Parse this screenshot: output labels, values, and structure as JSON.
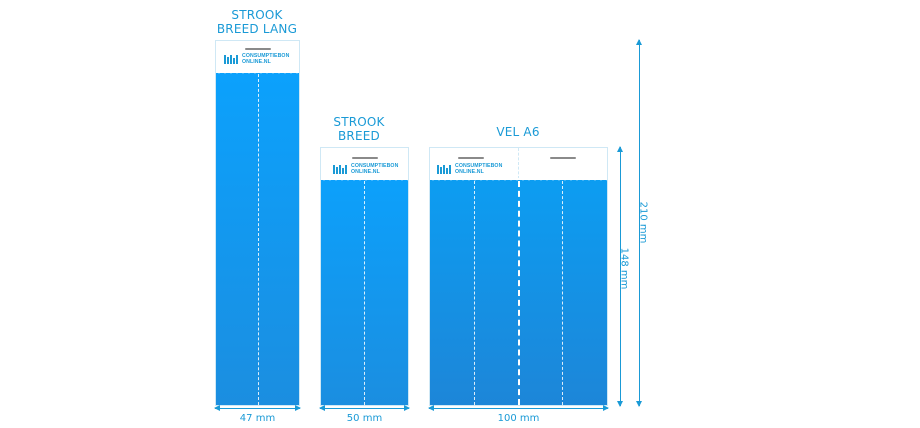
{
  "products": [
    {
      "title": "STROOK\nBREED LANG",
      "logo_line1": "CONSUMPTIEBON",
      "logo_line2": "ONLINE.NL",
      "width_label": "47 mm"
    },
    {
      "title": "STROOK\nBREED",
      "logo_line1": "CONSUMPTIEBON",
      "logo_line2": "ONLINE.NL",
      "width_label": "50 mm"
    },
    {
      "title": "VEL A6",
      "logo_line1": "CONSUMPTIEBON",
      "logo_line2": "ONLINE.NL",
      "width_label": "100 mm"
    }
  ],
  "height_labels": {
    "short": "148 mm",
    "tall": "210 mm"
  },
  "colors": {
    "accent": "#1a9ad6",
    "card_top": "#0aa3ff",
    "card_bottom": "#1b8ee0"
  },
  "icons": {
    "logo": "barcode-bars-icon"
  }
}
